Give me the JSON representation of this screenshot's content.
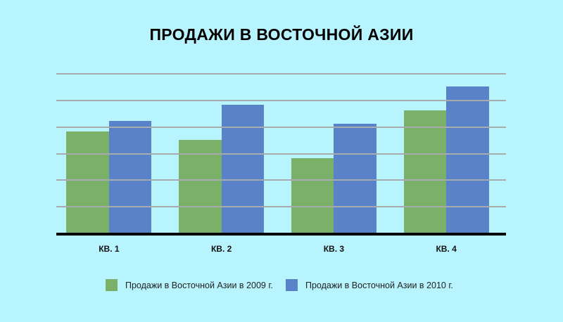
{
  "colors": {
    "background": "#B8F4FE",
    "series_2009": "#7AB067",
    "series_2010": "#5A82C8",
    "gridline": "#A8ABAE",
    "axis": "#000000"
  },
  "chart_data": {
    "type": "bar",
    "title": "ПРОДАЖИ В ВОСТОЧНОЙ АЗИИ",
    "categories": [
      "КВ. 1",
      "КВ. 2",
      "КВ. 3",
      "КВ. 4"
    ],
    "series": [
      {
        "name": "Продажи в Восточной Азии в 2009 г.",
        "values": [
          3.8,
          3.5,
          2.8,
          4.6
        ]
      },
      {
        "name": "Продажи в Восточной Азии в 2010 г.",
        "values": [
          4.2,
          4.8,
          4.1,
          5.5
        ]
      }
    ],
    "xlabel": "",
    "ylabel": "",
    "ylim": [
      0,
      6
    ],
    "y_tick_labels_visible": false,
    "grid": true,
    "gridline_count": 6,
    "legend_position": "bottom"
  }
}
